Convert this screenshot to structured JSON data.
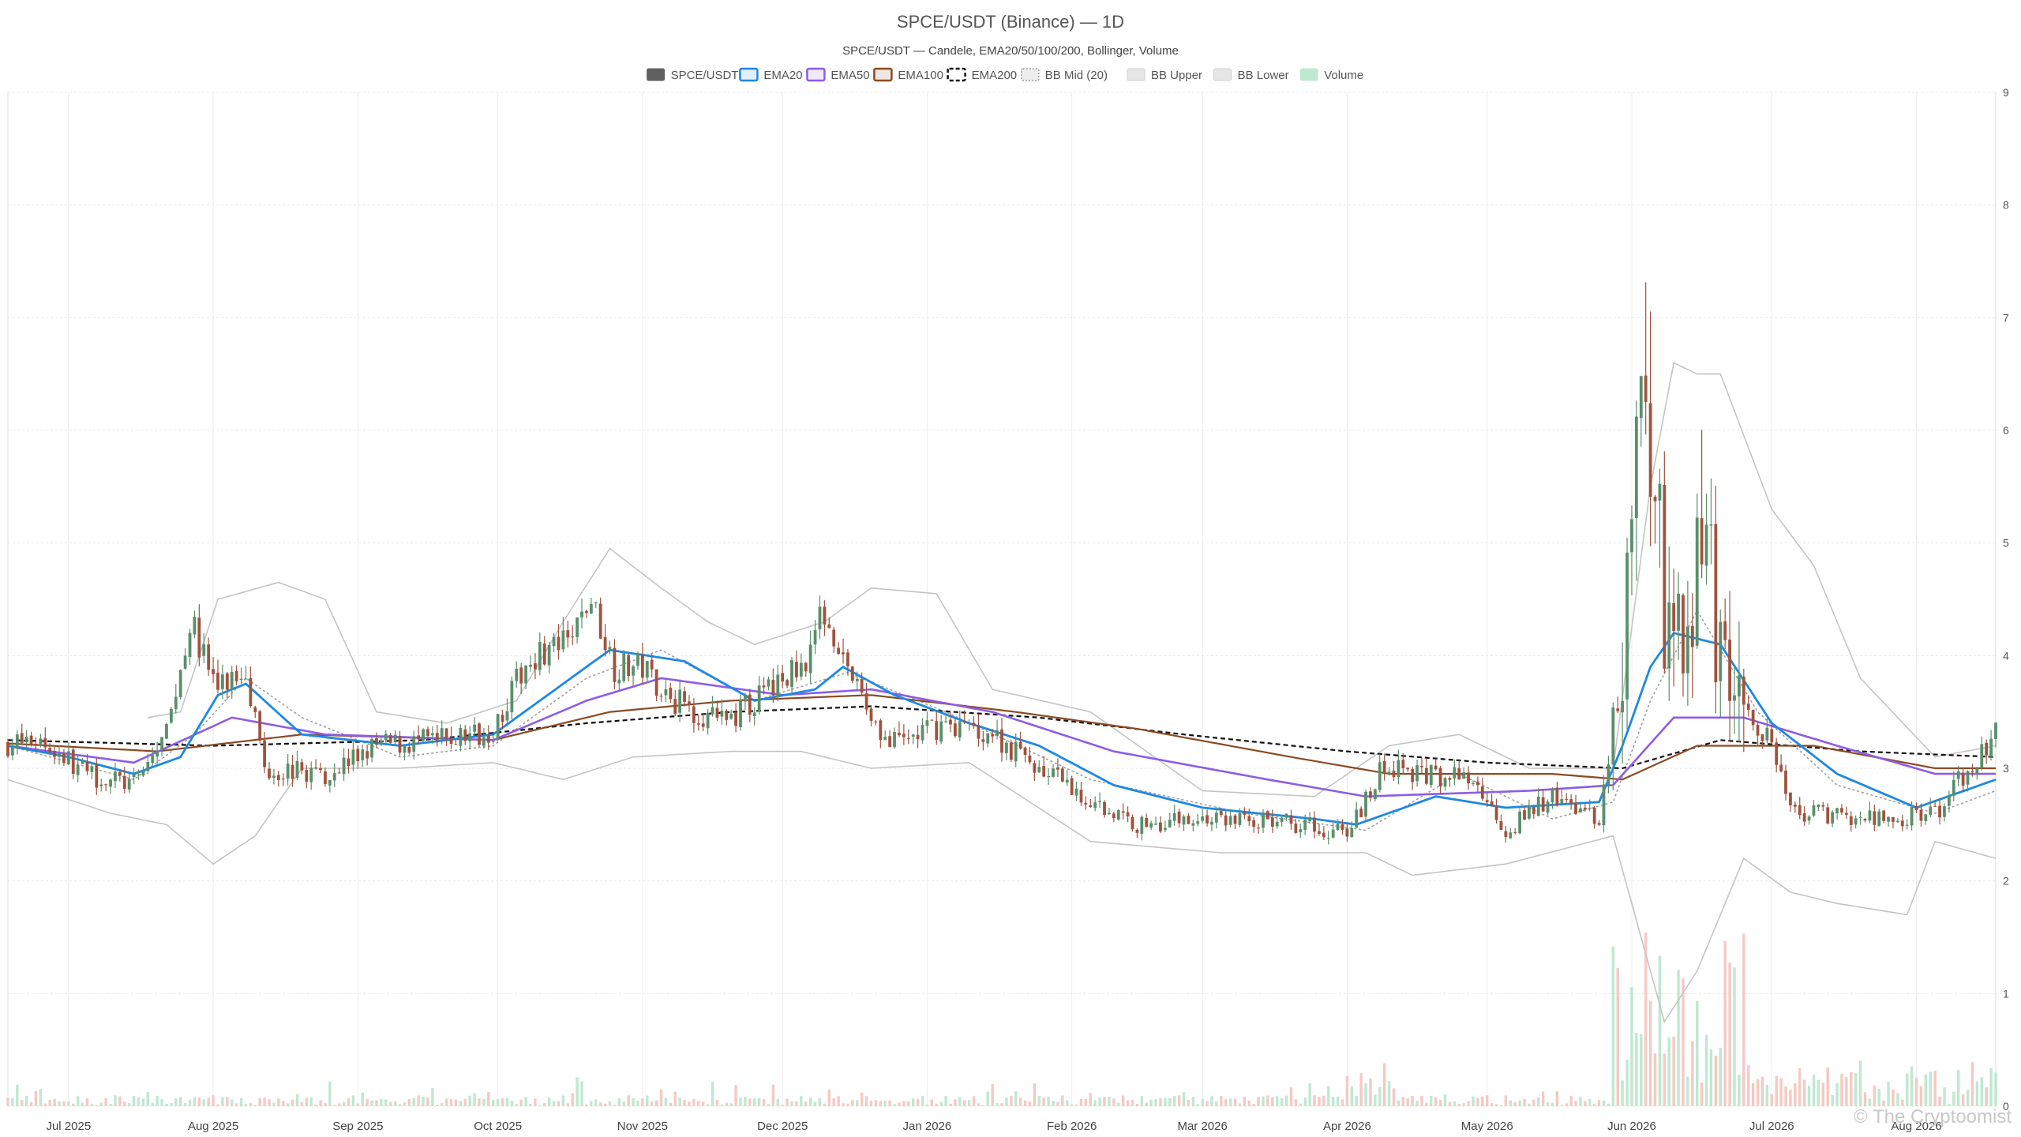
{
  "chart_data": {
    "type": "candlestick",
    "title": "SPCE/USDT (Binance) — 1D",
    "subtitle": "SPCE/USDT — Candele, EMA20/50/100/200, Bollinger, Volume",
    "ylim": [
      0,
      9
    ],
    "y_ticks": [
      "0",
      "1",
      "2",
      "3",
      "4",
      "5",
      "6",
      "7",
      "8",
      "9"
    ],
    "x_ticks": [
      {
        "label": "Jul 2025",
        "date": "2025-07-01"
      },
      {
        "label": "Aug 2025",
        "date": "2025-08-01"
      },
      {
        "label": "Sep 2025",
        "date": "2025-09-01"
      },
      {
        "label": "Oct 2025",
        "date": "2025-10-01"
      },
      {
        "label": "Nov 2025",
        "date": "2025-11-01"
      },
      {
        "label": "Dec 2025",
        "date": "2025-12-01"
      },
      {
        "label": "Jan 2026",
        "date": "2026-01-01"
      },
      {
        "label": "Feb 2026",
        "date": "2026-02-01"
      },
      {
        "label": "Mar 2026",
        "date": "2026-03-01"
      },
      {
        "label": "Apr 2026",
        "date": "2026-04-01"
      },
      {
        "label": "May 2026",
        "date": "2026-05-01"
      },
      {
        "label": "Jun 2026",
        "date": "2026-06-01"
      },
      {
        "label": "Jul 2026",
        "date": "2026-07-01"
      },
      {
        "label": "Aug 2026",
        "date": "2026-08-01"
      }
    ],
    "date_range": [
      "2025-06-18",
      "2026-08-18"
    ],
    "grid": true,
    "legend": {
      "placement": "top-center",
      "entries": [
        {
          "label": "SPCE/USDT",
          "color": "#606060",
          "style": "solid"
        },
        {
          "label": "EMA20",
          "color": "#1e88e5",
          "style": "solid"
        },
        {
          "label": "EMA50",
          "color": "#8e5ce6",
          "style": "solid"
        },
        {
          "label": "EMA100",
          "color": "#8b4a23",
          "style": "solid"
        },
        {
          "label": "EMA200",
          "color": "#111111",
          "style": "dashed"
        },
        {
          "label": "BB Mid (20)",
          "color": "#9a9a9a",
          "style": "dotted"
        },
        {
          "label": "BB Upper",
          "color": "#bdbdbd",
          "style": "solid"
        },
        {
          "label": "BB Lower",
          "color": "#bdbdbd",
          "style": "solid"
        },
        {
          "label": "Volume",
          "color": "#bfe8d0",
          "style": "solid"
        }
      ]
    },
    "colors": {
      "up": "#5a8f6b",
      "down": "#a0523d",
      "volume_up": "#bfe8d0",
      "volume_down": "#f6c9c2"
    },
    "series": {
      "close_anchors": [
        [
          "2025-06-18",
          3.22
        ],
        [
          "2025-06-25",
          3.25
        ],
        [
          "2025-07-05",
          2.95
        ],
        [
          "2025-07-15",
          2.85
        ],
        [
          "2025-07-22",
          3.3
        ],
        [
          "2025-07-27",
          4.3
        ],
        [
          "2025-08-02",
          3.7
        ],
        [
          "2025-08-08",
          3.9
        ],
        [
          "2025-08-12",
          3.0
        ],
        [
          "2025-08-25",
          2.95
        ],
        [
          "2025-09-05",
          3.2
        ],
        [
          "2025-09-20",
          3.25
        ],
        [
          "2025-09-30",
          3.35
        ],
        [
          "2025-10-08",
          4.0
        ],
        [
          "2025-10-16",
          4.1
        ],
        [
          "2025-10-21",
          4.5
        ],
        [
          "2025-10-26",
          3.9
        ],
        [
          "2025-11-01",
          3.9
        ],
        [
          "2025-11-08",
          3.6
        ],
        [
          "2025-11-18",
          3.4
        ],
        [
          "2025-11-25",
          3.6
        ],
        [
          "2025-12-05",
          3.9
        ],
        [
          "2025-12-10",
          4.4
        ],
        [
          "2025-12-17",
          3.7
        ],
        [
          "2025-12-24",
          3.2
        ],
        [
          "2026-01-05",
          3.4
        ],
        [
          "2026-01-15",
          3.3
        ],
        [
          "2026-01-25",
          3.0
        ],
        [
          "2026-02-05",
          2.7
        ],
        [
          "2026-02-15",
          2.5
        ],
        [
          "2026-02-25",
          2.55
        ],
        [
          "2026-03-10",
          2.55
        ],
        [
          "2026-03-25",
          2.5
        ],
        [
          "2026-04-01",
          2.4
        ],
        [
          "2026-04-08",
          3.0
        ],
        [
          "2026-04-18",
          2.95
        ],
        [
          "2026-04-28",
          2.9
        ],
        [
          "2026-05-05",
          2.45
        ],
        [
          "2026-05-15",
          2.75
        ],
        [
          "2026-05-25",
          2.55
        ],
        [
          "2026-05-28",
          3.2
        ],
        [
          "2026-06-01",
          5.0
        ],
        [
          "2026-06-03",
          7.5
        ],
        [
          "2026-06-05",
          6.0
        ],
        [
          "2026-06-08",
          4.5
        ],
        [
          "2026-06-12",
          3.9
        ],
        [
          "2026-06-16",
          5.0
        ],
        [
          "2026-06-20",
          3.8
        ],
        [
          "2026-06-24",
          3.6
        ],
        [
          "2026-07-01",
          3.2
        ],
        [
          "2026-07-05",
          2.6
        ],
        [
          "2026-07-15",
          2.6
        ],
        [
          "2026-07-25",
          2.55
        ],
        [
          "2026-08-05",
          2.6
        ],
        [
          "2026-08-12",
          3.0
        ],
        [
          "2026-08-18",
          3.3
        ]
      ],
      "ema20": [
        [
          "2025-06-18",
          3.2
        ],
        [
          "2025-07-01",
          3.1
        ],
        [
          "2025-07-15",
          2.95
        ],
        [
          "2025-07-25",
          3.1
        ],
        [
          "2025-08-02",
          3.65
        ],
        [
          "2025-08-08",
          3.75
        ],
        [
          "2025-08-20",
          3.3
        ],
        [
          "2025-09-10",
          3.2
        ],
        [
          "2025-09-30",
          3.3
        ],
        [
          "2025-10-10",
          3.6
        ],
        [
          "2025-10-25",
          4.05
        ],
        [
          "2025-11-10",
          3.95
        ],
        [
          "2025-11-25",
          3.6
        ],
        [
          "2025-12-08",
          3.7
        ],
        [
          "2025-12-14",
          3.9
        ],
        [
          "2025-12-25",
          3.65
        ],
        [
          "2026-01-10",
          3.4
        ],
        [
          "2026-01-25",
          3.2
        ],
        [
          "2026-02-10",
          2.85
        ],
        [
          "2026-03-01",
          2.65
        ],
        [
          "2026-03-25",
          2.55
        ],
        [
          "2026-04-03",
          2.5
        ],
        [
          "2026-04-20",
          2.75
        ],
        [
          "2026-05-05",
          2.65
        ],
        [
          "2026-05-25",
          2.7
        ],
        [
          "2026-05-30",
          3.2
        ],
        [
          "2026-06-05",
          3.9
        ],
        [
          "2026-06-10",
          4.2
        ],
        [
          "2026-06-20",
          4.1
        ],
        [
          "2026-07-01",
          3.4
        ],
        [
          "2026-07-15",
          2.95
        ],
        [
          "2026-08-01",
          2.65
        ],
        [
          "2026-08-18",
          2.9
        ]
      ],
      "ema50": [
        [
          "2025-06-18",
          3.2
        ],
        [
          "2025-07-15",
          3.05
        ],
        [
          "2025-08-05",
          3.45
        ],
        [
          "2025-08-25",
          3.3
        ],
        [
          "2025-09-30",
          3.25
        ],
        [
          "2025-10-20",
          3.6
        ],
        [
          "2025-11-05",
          3.8
        ],
        [
          "2025-12-01",
          3.65
        ],
        [
          "2025-12-20",
          3.7
        ],
        [
          "2026-01-15",
          3.5
        ],
        [
          "2026-02-10",
          3.15
        ],
        [
          "2026-03-15",
          2.9
        ],
        [
          "2026-04-05",
          2.75
        ],
        [
          "2026-05-10",
          2.8
        ],
        [
          "2026-05-28",
          2.85
        ],
        [
          "2026-06-10",
          3.45
        ],
        [
          "2026-06-25",
          3.45
        ],
        [
          "2026-07-15",
          3.2
        ],
        [
          "2026-08-05",
          2.95
        ],
        [
          "2026-08-18",
          2.95
        ]
      ],
      "ema100": [
        [
          "2025-06-18",
          3.22
        ],
        [
          "2025-07-20",
          3.15
        ],
        [
          "2025-08-20",
          3.3
        ],
        [
          "2025-09-30",
          3.25
        ],
        [
          "2025-10-25",
          3.5
        ],
        [
          "2025-11-20",
          3.6
        ],
        [
          "2025-12-20",
          3.65
        ],
        [
          "2026-01-20",
          3.5
        ],
        [
          "2026-02-15",
          3.35
        ],
        [
          "2026-03-20",
          3.1
        ],
        [
          "2026-04-10",
          2.95
        ],
        [
          "2026-05-15",
          2.95
        ],
        [
          "2026-05-30",
          2.9
        ],
        [
          "2026-06-15",
          3.2
        ],
        [
          "2026-07-10",
          3.2
        ],
        [
          "2026-08-05",
          3.0
        ],
        [
          "2026-08-18",
          3.0
        ]
      ],
      "ema200": [
        [
          "2025-06-18",
          3.25
        ],
        [
          "2025-08-01",
          3.2
        ],
        [
          "2025-09-15",
          3.25
        ],
        [
          "2025-10-20",
          3.4
        ],
        [
          "2025-11-20",
          3.5
        ],
        [
          "2025-12-20",
          3.55
        ],
        [
          "2026-01-25",
          3.45
        ],
        [
          "2026-02-25",
          3.3
        ],
        [
          "2026-04-01",
          3.15
        ],
        [
          "2026-05-01",
          3.05
        ],
        [
          "2026-05-30",
          3.0
        ],
        [
          "2026-06-20",
          3.25
        ],
        [
          "2026-07-20",
          3.15
        ],
        [
          "2026-08-18",
          3.1
        ]
      ],
      "bb_upper": [
        [
          "2025-07-18",
          3.45
        ],
        [
          "2025-07-25",
          3.5
        ],
        [
          "2025-08-02",
          4.5
        ],
        [
          "2025-08-15",
          4.65
        ],
        [
          "2025-08-25",
          4.5
        ],
        [
          "2025-09-05",
          3.5
        ],
        [
          "2025-09-20",
          3.4
        ],
        [
          "2025-10-05",
          3.6
        ],
        [
          "2025-10-15",
          4.3
        ],
        [
          "2025-10-25",
          4.95
        ],
        [
          "2025-11-05",
          4.6
        ],
        [
          "2025-11-15",
          4.3
        ],
        [
          "2025-11-25",
          4.1
        ],
        [
          "2025-12-10",
          4.3
        ],
        [
          "2025-12-20",
          4.6
        ],
        [
          "2026-01-03",
          4.55
        ],
        [
          "2026-01-15",
          3.7
        ],
        [
          "2026-02-05",
          3.5
        ],
        [
          "2026-03-01",
          2.8
        ],
        [
          "2026-03-25",
          2.75
        ],
        [
          "2026-04-10",
          3.2
        ],
        [
          "2026-04-25",
          3.3
        ],
        [
          "2026-05-10",
          3.0
        ],
        [
          "2026-05-28",
          3.0
        ],
        [
          "2026-06-05",
          5.5
        ],
        [
          "2026-06-10",
          6.6
        ],
        [
          "2026-06-15",
          6.5
        ],
        [
          "2026-06-20",
          6.5
        ],
        [
          "2026-07-01",
          5.3
        ],
        [
          "2026-07-10",
          4.8
        ],
        [
          "2026-07-20",
          3.8
        ],
        [
          "2026-08-05",
          3.1
        ],
        [
          "2026-08-18",
          3.2
        ]
      ],
      "bb_mid": [
        [
          "2025-06-18",
          3.2
        ],
        [
          "2025-07-15",
          2.9
        ],
        [
          "2025-07-28",
          3.3
        ],
        [
          "2025-08-08",
          3.8
        ],
        [
          "2025-08-20",
          3.45
        ],
        [
          "2025-09-10",
          3.1
        ],
        [
          "2025-09-30",
          3.2
        ],
        [
          "2025-10-20",
          3.8
        ],
        [
          "2025-11-05",
          4.05
        ],
        [
          "2025-11-25",
          3.6
        ],
        [
          "2025-12-15",
          3.85
        ],
        [
          "2026-01-05",
          3.5
        ],
        [
          "2026-02-05",
          2.9
        ],
        [
          "2026-03-10",
          2.6
        ],
        [
          "2026-04-05",
          2.45
        ],
        [
          "2026-04-25",
          2.95
        ],
        [
          "2026-05-15",
          2.55
        ],
        [
          "2026-05-28",
          2.7
        ],
        [
          "2026-06-05",
          3.6
        ],
        [
          "2026-06-15",
          4.4
        ],
        [
          "2026-06-28",
          3.5
        ],
        [
          "2026-07-15",
          2.85
        ],
        [
          "2026-08-05",
          2.6
        ],
        [
          "2026-08-18",
          2.8
        ]
      ],
      "bb_lower": [
        [
          "2025-06-18",
          2.9
        ],
        [
          "2025-07-10",
          2.6
        ],
        [
          "2025-07-22",
          2.5
        ],
        [
          "2025-08-01",
          2.15
        ],
        [
          "2025-08-10",
          2.4
        ],
        [
          "2025-08-20",
          3.0
        ],
        [
          "2025-09-10",
          3.0
        ],
        [
          "2025-09-30",
          3.05
        ],
        [
          "2025-10-15",
          2.9
        ],
        [
          "2025-10-30",
          3.1
        ],
        [
          "2025-11-20",
          3.15
        ],
        [
          "2025-12-05",
          3.15
        ],
        [
          "2025-12-20",
          3.0
        ],
        [
          "2026-01-10",
          3.05
        ],
        [
          "2026-02-05",
          2.35
        ],
        [
          "2026-03-05",
          2.25
        ],
        [
          "2026-04-05",
          2.25
        ],
        [
          "2026-04-15",
          2.05
        ],
        [
          "2026-05-05",
          2.15
        ],
        [
          "2026-05-28",
          2.4
        ],
        [
          "2026-06-03",
          1.5
        ],
        [
          "2026-06-08",
          0.75
        ],
        [
          "2026-06-15",
          1.2
        ],
        [
          "2026-06-25",
          2.2
        ],
        [
          "2026-07-05",
          1.9
        ],
        [
          "2026-07-15",
          1.8
        ],
        [
          "2026-07-30",
          1.7
        ],
        [
          "2026-08-05",
          2.35
        ],
        [
          "2026-08-18",
          2.2
        ]
      ]
    }
  },
  "watermark": "© The Cryptoomist"
}
